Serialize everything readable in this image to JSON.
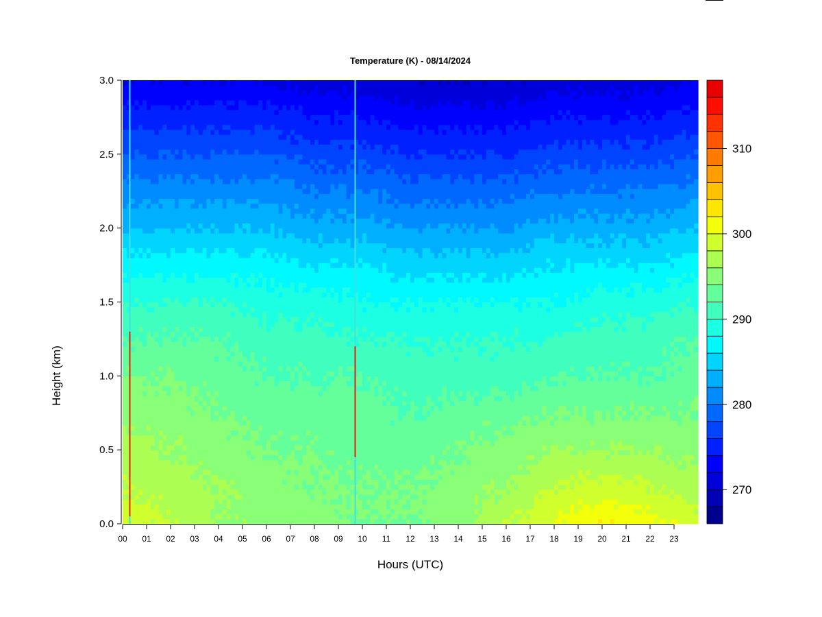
{
  "chart_data": {
    "type": "heatmap",
    "title": "Temperature (K) - 08/14/2024",
    "xlabel": "Hours (UTC)",
    "ylabel": "Height (km)",
    "xlim": [
      0,
      24
    ],
    "ylim": [
      0,
      3.0
    ],
    "x_ticks": [
      "00",
      "01",
      "02",
      "03",
      "04",
      "05",
      "06",
      "07",
      "08",
      "09",
      "10",
      "11",
      "12",
      "13",
      "14",
      "15",
      "16",
      "17",
      "18",
      "19",
      "20",
      "21",
      "22",
      "23"
    ],
    "y_ticks": [
      "0.0",
      "0.5",
      "1.0",
      "1.5",
      "2.0",
      "2.5",
      "3.0"
    ],
    "colorbar": {
      "ticks": [
        "270",
        "280",
        "290",
        "300",
        "310"
      ],
      "range": [
        266,
        318
      ],
      "levels": [
        266,
        268,
        270,
        272,
        274,
        276,
        278,
        280,
        282,
        284,
        286,
        288,
        290,
        292,
        294,
        296,
        298,
        300,
        302,
        304,
        306,
        308,
        310,
        312,
        314,
        316,
        318
      ],
      "colors": [
        "#00008f",
        "#0000b4",
        "#0000d8",
        "#0000fd",
        "#0020ff",
        "#0044ff",
        "#0068ff",
        "#008cff",
        "#00b0ff",
        "#00d4ff",
        "#00f8ff",
        "#1cffe2",
        "#40ffbe",
        "#64ff9a",
        "#88ff76",
        "#acff52",
        "#d0ff2e",
        "#f4ff0a",
        "#ffe600",
        "#ffc200",
        "#ff9e00",
        "#ff7a00",
        "#ff5600",
        "#ff3200",
        "#ff0e00",
        "#e60000",
        "#b40000",
        "#8f0000"
      ]
    },
    "heights_km": [
      0.0,
      0.25,
      0.5,
      0.75,
      1.0,
      1.25,
      1.5,
      1.75,
      2.0,
      2.25,
      2.5,
      2.75,
      3.0
    ],
    "times_h": [
      0,
      2,
      4,
      6,
      8,
      10,
      12,
      14,
      16,
      18,
      20,
      22,
      24
    ],
    "temperature_K": [
      [
        299,
        298,
        296,
        295,
        295,
        294,
        294,
        295,
        298,
        300,
        302,
        301,
        299
      ],
      [
        298,
        297,
        296,
        295,
        294,
        294,
        294,
        295,
        296,
        298,
        299,
        298,
        297
      ],
      [
        297,
        296,
        295,
        294,
        294,
        293,
        293,
        294,
        295,
        296,
        296,
        296,
        295
      ],
      [
        295,
        295,
        294,
        293,
        293,
        293,
        292,
        293,
        293,
        294,
        294,
        294,
        294
      ],
      [
        294,
        294,
        293,
        292,
        292,
        292,
        291,
        291,
        291,
        292,
        292,
        292,
        293
      ],
      [
        292,
        292,
        292,
        291,
        291,
        290,
        290,
        290,
        290,
        290,
        291,
        291,
        292
      ],
      [
        290,
        290,
        290,
        289,
        289,
        288,
        288,
        288,
        288,
        288,
        289,
        289,
        290
      ],
      [
        287,
        287,
        287,
        287,
        286,
        286,
        285,
        285,
        285,
        286,
        286,
        286,
        287
      ],
      [
        284,
        284,
        284,
        284,
        283,
        283,
        282,
        282,
        282,
        283,
        283,
        283,
        284
      ],
      [
        281,
        281,
        281,
        281,
        280,
        280,
        279,
        279,
        279,
        280,
        280,
        280,
        281
      ],
      [
        278,
        278,
        278,
        278,
        277,
        277,
        276,
        276,
        276,
        277,
        277,
        277,
        278
      ],
      [
        275,
        275,
        275,
        275,
        274,
        274,
        273,
        273,
        273,
        274,
        274,
        274,
        275
      ],
      [
        272,
        272,
        272,
        272,
        271,
        271,
        270,
        270,
        270,
        271,
        271,
        271,
        272
      ]
    ],
    "spikes": [
      {
        "time_h": 0.3,
        "from_km": 0.05,
        "to_km": 1.3
      },
      {
        "time_h": 9.7,
        "from_km": 0.45,
        "to_km": 1.2
      }
    ]
  }
}
